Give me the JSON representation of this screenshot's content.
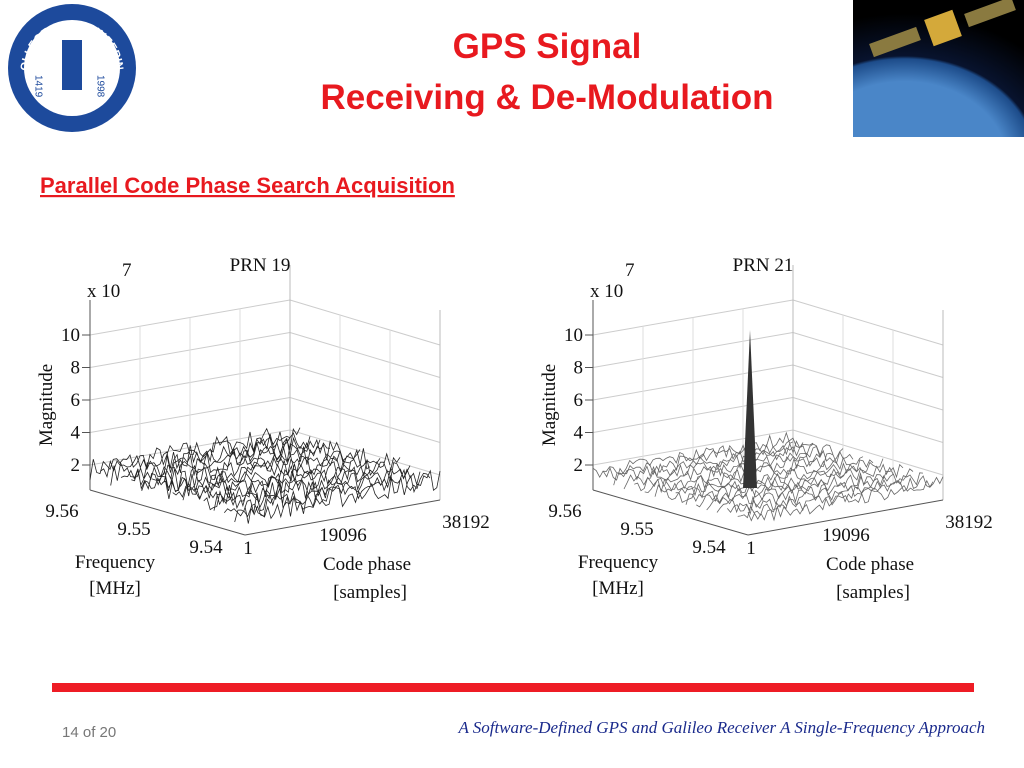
{
  "header": {
    "title": [
      "GPS Signal",
      "Receiving & De-Modulation"
    ]
  },
  "logo": {
    "text": "COLLEGE OF ENGINEERING",
    "years": [
      "1419",
      "1998"
    ]
  },
  "section": "Parallel Code Phase Search Acquisition",
  "figures": [
    {
      "title": "PRN 19",
      "scale": "x 10",
      "exponent": "7",
      "y_label": "Magnitude",
      "y_ticks": [
        10,
        8,
        6,
        4,
        2
      ],
      "freq_ticks": [
        "9.56",
        "9.55",
        "9.54"
      ],
      "code_ticks": [
        1,
        19096,
        38192
      ],
      "freq_label": [
        "Frequency",
        "[MHz]"
      ],
      "code_label": [
        "Code phase",
        "[samples]"
      ]
    },
    {
      "title": "PRN 21",
      "scale": "x 10",
      "exponent": "7",
      "y_label": "Magnitude",
      "y_ticks": [
        10,
        8,
        6,
        4,
        2
      ],
      "freq_ticks": [
        "9.56",
        "9.55",
        "9.54"
      ],
      "code_ticks": [
        1,
        19096,
        38192
      ],
      "freq_label": [
        "Frequency",
        "[MHz]"
      ],
      "code_label": [
        "Code phase",
        "[samples]"
      ]
    }
  ],
  "footer": {
    "page": "14",
    "of": "of",
    "total": "20",
    "reference": "A Software-Defined GPS and Galileo Receiver A Single-Frequency Approach"
  }
}
